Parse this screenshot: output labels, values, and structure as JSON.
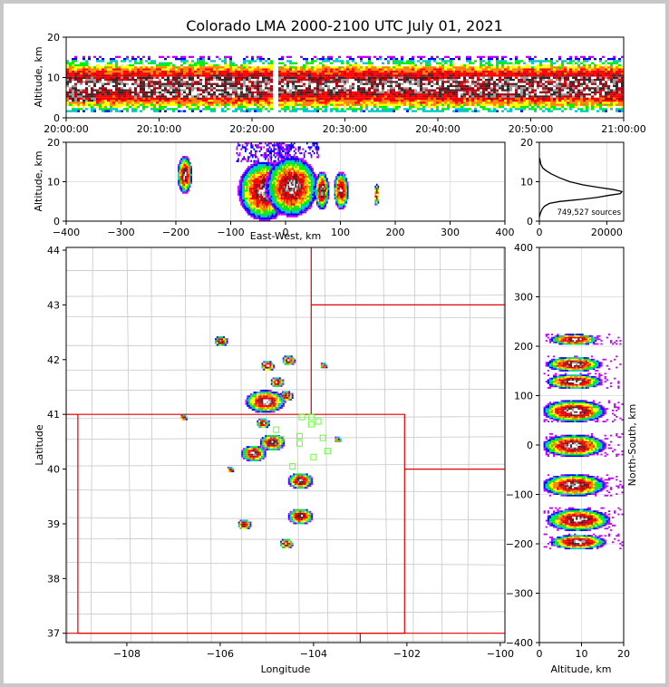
{
  "chart_data": [
    {
      "panel": "time-altitude",
      "type": "heatmap",
      "title": "Colorado LMA 2000-2100 UTC July 01, 2021",
      "xlabel": "",
      "ylabel": "Altitude, km",
      "xticks": [
        "20:00:00",
        "20:10:00",
        "20:20:00",
        "20:30:00",
        "20:40:00",
        "20:50:00",
        "21:00:00"
      ],
      "xlim": [
        0,
        60
      ],
      "yticks": [
        0,
        10,
        20
      ],
      "ylim": [
        0,
        20
      ],
      "gap_minutes": [
        22.0,
        22.8
      ],
      "core_altitude_km": [
        5,
        11
      ],
      "extent_altitude_km": [
        2,
        16
      ]
    },
    {
      "panel": "east-west-altitude",
      "type": "heatmap",
      "xlabel": "East-West, km",
      "ylabel": "Altitude, km",
      "xticks": [
        -400,
        -300,
        -200,
        -100,
        0,
        100,
        200,
        300,
        400
      ],
      "xlim": [
        -400,
        400
      ],
      "yticks": [
        0,
        10,
        20
      ],
      "ylim": [
        0,
        20
      ],
      "clusters": [
        {
          "x": -185,
          "z": 12,
          "size": "small"
        },
        {
          "x": -40,
          "z": 8,
          "size": "large"
        },
        {
          "x": 10,
          "z": 9,
          "size": "large"
        },
        {
          "x": 65,
          "z": 8,
          "size": "small"
        },
        {
          "x": 100,
          "z": 8,
          "size": "small"
        },
        {
          "x": 165,
          "z": 7,
          "size": "tiny"
        }
      ]
    },
    {
      "panel": "altitude-histogram",
      "type": "line",
      "xticks": [
        0,
        20000
      ],
      "xlim": [
        0,
        25000
      ],
      "yticks": [
        0,
        10,
        20
      ],
      "ylim": [
        0,
        20
      ],
      "annotation": "749,527 sources",
      "x": [
        0,
        300,
        800,
        1500,
        3000,
        6000,
        12000,
        17000,
        21000,
        24000,
        24500,
        22000,
        18000,
        13000,
        9000,
        6000,
        3500,
        2000,
        1000,
        400,
        100
      ],
      "y": [
        1,
        2,
        3,
        3.8,
        4.5,
        5.0,
        5.5,
        6.0,
        6.6,
        7.0,
        7.5,
        8.0,
        8.5,
        9.2,
        10.0,
        11.0,
        12.0,
        12.8,
        13.5,
        14.5,
        16
      ]
    },
    {
      "panel": "plan-view",
      "type": "scatter",
      "xlabel": "Longitude",
      "ylabel": "Latitude",
      "xticks": [
        "−108",
        "−106",
        "−104",
        "−102",
        "−100"
      ],
      "xlim": [
        -109.3,
        -99.9
      ],
      "yticks": [
        "37",
        "38",
        "39",
        "40",
        "41",
        "42",
        "43",
        "44"
      ],
      "ylim": [
        36.83,
        44.05
      ],
      "clusters": [
        {
          "lon": -105.05,
          "lat": 41.25,
          "size": "large"
        },
        {
          "lon": -104.9,
          "lat": 40.5,
          "size": "medium"
        },
        {
          "lon": -105.3,
          "lat": 40.3,
          "size": "medium"
        },
        {
          "lon": -104.3,
          "lat": 39.8,
          "size": "medium"
        },
        {
          "lon": -104.3,
          "lat": 39.15,
          "size": "medium"
        },
        {
          "lon": -104.6,
          "lat": 38.65,
          "size": "small"
        },
        {
          "lon": -105.5,
          "lat": 39.0,
          "size": "small"
        },
        {
          "lon": -104.6,
          "lat": 41.35,
          "size": "small"
        },
        {
          "lon": -104.55,
          "lat": 42.0,
          "size": "small"
        },
        {
          "lon": -104.8,
          "lat": 41.6,
          "size": "small"
        },
        {
          "lon": -105.0,
          "lat": 41.9,
          "size": "small"
        },
        {
          "lon": -106.0,
          "lat": 42.35,
          "size": "small"
        },
        {
          "lon": -103.8,
          "lat": 41.9,
          "size": "tiny"
        },
        {
          "lon": -106.8,
          "lat": 40.95,
          "size": "tiny"
        },
        {
          "lon": -105.8,
          "lat": 40.0,
          "size": "tiny"
        },
        {
          "lon": -103.5,
          "lat": 40.55,
          "size": "tiny"
        },
        {
          "lon": -105.1,
          "lat": 40.85,
          "size": "small"
        }
      ],
      "stations": [
        {
          "lon": -104.25,
          "lat": 40.95
        },
        {
          "lon": -104.05,
          "lat": 40.95
        },
        {
          "lon": -103.9,
          "lat": 40.87
        },
        {
          "lon": -104.05,
          "lat": 40.82
        },
        {
          "lon": -104.3,
          "lat": 40.6
        },
        {
          "lon": -103.8,
          "lat": 40.57
        },
        {
          "lon": -104.3,
          "lat": 40.47
        },
        {
          "lon": -103.7,
          "lat": 40.33
        },
        {
          "lon": -104.0,
          "lat": 40.22
        },
        {
          "lon": -104.45,
          "lat": 40.05
        },
        {
          "lon": -104.8,
          "lat": 40.72
        },
        {
          "lon": -104.7,
          "lat": 40.55
        }
      ]
    },
    {
      "panel": "altitude-north-south",
      "type": "heatmap",
      "xlabel": "Altitude, km",
      "ylabel": "North-South, km",
      "xticks": [
        0,
        10,
        20
      ],
      "xlim": [
        0,
        20
      ],
      "yticks": [
        -400,
        -300,
        -200,
        -100,
        0,
        100,
        200,
        300,
        400
      ],
      "ylim": [
        -400,
        400
      ],
      "clusters": [
        {
          "z": 8,
          "y": 215,
          "size": "small"
        },
        {
          "z": 8,
          "y": 165,
          "size": "medium"
        },
        {
          "z": 8,
          "y": 130,
          "size": "medium"
        },
        {
          "z": 8,
          "y": 70,
          "size": "large"
        },
        {
          "z": 8,
          "y": 0,
          "size": "large"
        },
        {
          "z": 8,
          "y": -80,
          "size": "large"
        },
        {
          "z": 9,
          "y": -150,
          "size": "large"
        },
        {
          "z": 9,
          "y": -195,
          "size": "medium"
        }
      ]
    }
  ]
}
